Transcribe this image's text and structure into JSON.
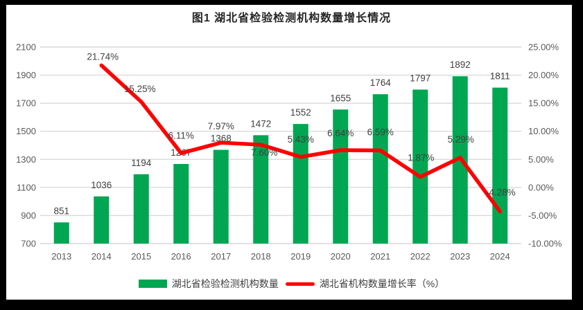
{
  "title": "图1 湖北省检验检测机构数量增长情况",
  "colors": {
    "bar": "#00A651",
    "line": "#FF0000",
    "grid": "#D9D9D9",
    "tick_text": "#595959",
    "data_label": "#404040",
    "title_text": "#262626",
    "frame": "#000000",
    "background": "#FFFFFF"
  },
  "chart_data": {
    "type": "bar",
    "subtype": "combo-bar-line",
    "title": "图1 湖北省检验检测机构数量增长情况",
    "categories": [
      "2013",
      "2014",
      "2015",
      "2016",
      "2017",
      "2018",
      "2019",
      "2020",
      "2021",
      "2022",
      "2023",
      "2024"
    ],
    "series": [
      {
        "name": "湖北省检验检测机构数量",
        "type": "bar",
        "axis": "left",
        "values": [
          851,
          1036,
          1194,
          1267,
          1368,
          1472,
          1552,
          1655,
          1764,
          1797,
          1892,
          1811
        ],
        "labels": [
          "851",
          "1036",
          "1194",
          "1267",
          "1368",
          "1472",
          "1552",
          "1655",
          "1764",
          "1797",
          "1892",
          "1811"
        ]
      },
      {
        "name": "湖北省机构数量增长率（%）",
        "type": "line",
        "axis": "right",
        "values": [
          null,
          21.74,
          15.25,
          6.11,
          7.97,
          7.6,
          5.43,
          6.64,
          6.59,
          1.87,
          5.29,
          -4.28
        ],
        "labels": [
          null,
          "21.74%",
          "15.25%",
          "6.11%",
          "7.97%",
          "7.60%",
          "5.43%",
          "6.64%",
          "6.59%",
          "1.87%",
          "5.29%",
          "-4.28%"
        ]
      }
    ],
    "left_axis": {
      "min": 700,
      "max": 2100,
      "step": 200,
      "ticks": [
        "700",
        "900",
        "1100",
        "1300",
        "1500",
        "1700",
        "1900",
        "2100"
      ]
    },
    "right_axis": {
      "min": -10,
      "max": 25,
      "step": 5,
      "ticks": [
        "-10.00%",
        "-5.00%",
        "0.00%",
        "5.00%",
        "10.00%",
        "15.00%",
        "20.00%",
        "25.00%"
      ]
    },
    "grid": true,
    "legend_position": "bottom",
    "line_label_offsets": [
      null,
      [
        2,
        -8
      ],
      [
        -2,
        -14
      ],
      [
        0,
        -21
      ],
      [
        0,
        -19
      ],
      [
        5,
        16
      ],
      [
        0,
        -21
      ],
      [
        0,
        -20
      ],
      [
        0,
        -22
      ],
      [
        1,
        -23
      ],
      [
        1,
        -22
      ],
      [
        1,
        -23
      ]
    ]
  }
}
